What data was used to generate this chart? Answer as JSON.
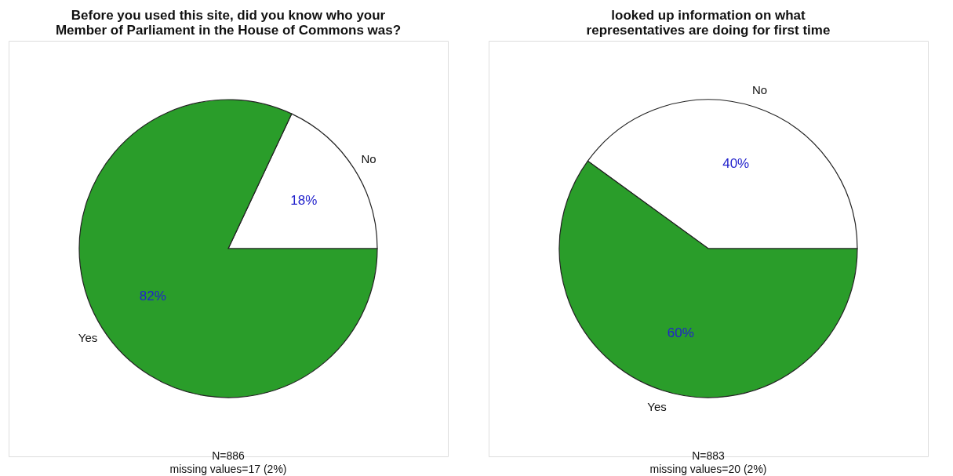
{
  "chart_data": [
    {
      "type": "pie",
      "title": "Before you used this site, did you know who your\nMember of Parliament in the House of Commons was?",
      "categories": [
        "No",
        "Yes"
      ],
      "values": [
        18,
        82
      ],
      "colors": [
        "#ffffff",
        "#2a9d2a"
      ],
      "value_labels": [
        "18%",
        "82%"
      ],
      "annotations": [
        "N=886",
        "missing values=17 (2%)"
      ],
      "legend": false
    },
    {
      "type": "pie",
      "title": "looked up information on what\nrepresentatives are doing for first time",
      "categories": [
        "No",
        "Yes"
      ],
      "values": [
        40,
        60
      ],
      "colors": [
        "#ffffff",
        "#2a9d2a"
      ],
      "value_labels": [
        "40%",
        "60%"
      ],
      "annotations": [
        "N=883",
        "missing values=20 (2%)"
      ],
      "legend": false
    }
  ]
}
